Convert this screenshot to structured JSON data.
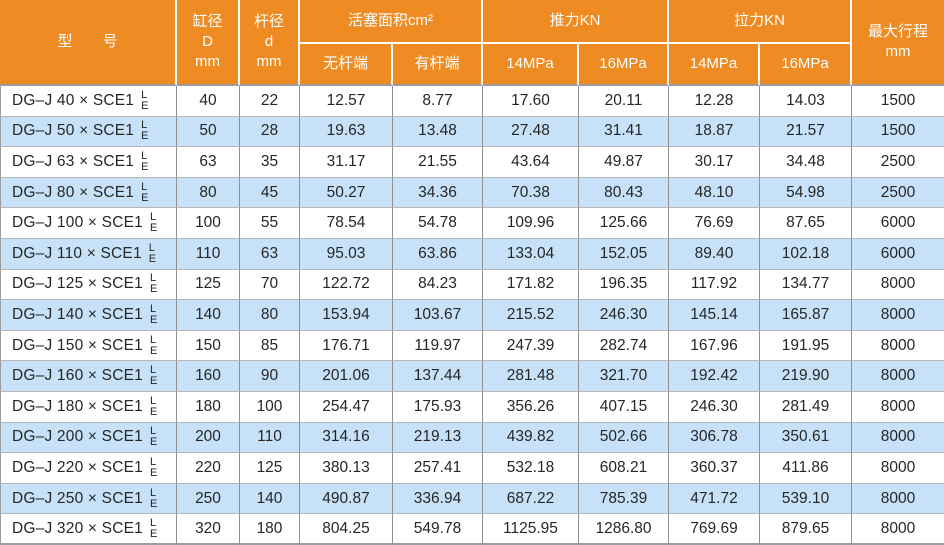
{
  "colors": {
    "header_bg": "#ee8b23",
    "header_text": "#ffffff",
    "row_bg": "#ffffff",
    "row_alt_bg": "#c7e2f8",
    "body_text": "#262626",
    "column_line": "#8f9091",
    "row_line": "#b5b7b9",
    "outer_line": "#9b9da0"
  },
  "chart_data": {
    "type": "table",
    "header": {
      "model": "型　　号",
      "bore_lines": [
        "缸径",
        "D",
        "mm"
      ],
      "rod_lines": [
        "杆径",
        "d",
        "mm"
      ],
      "piston_area": "活塞面积cm²",
      "push": "推力KN",
      "pull": "拉力KN",
      "max_stroke_lines": [
        "最大行程",
        "mm"
      ],
      "sub_headers": [
        "无杆端",
        "有杆端",
        "14MPa",
        "16MPa",
        "14MPa",
        "16MPa"
      ]
    },
    "rows": [
      {
        "model": "DG–J 40 × SCE1",
        "suffix": [
          "L",
          "E"
        ],
        "values": [
          "40",
          "22",
          "12.57",
          "8.77",
          "17.60",
          "20.11",
          "12.28",
          "14.03",
          "1500"
        ]
      },
      {
        "model": "DG–J 50 × SCE1",
        "suffix": [
          "L",
          "E"
        ],
        "values": [
          "50",
          "28",
          "19.63",
          "13.48",
          "27.48",
          "31.41",
          "18.87",
          "21.57",
          "1500"
        ]
      },
      {
        "model": "DG–J 63 × SCE1",
        "suffix": [
          "L",
          "E"
        ],
        "values": [
          "63",
          "35",
          "31.17",
          "21.55",
          "43.64",
          "49.87",
          "30.17",
          "34.48",
          "2500"
        ]
      },
      {
        "model": "DG–J 80 × SCE1",
        "suffix": [
          "L",
          "E"
        ],
        "values": [
          "80",
          "45",
          "50.27",
          "34.36",
          "70.38",
          "80.43",
          "48.10",
          "54.98",
          "2500"
        ]
      },
      {
        "model": "DG–J 100 × SCE1",
        "suffix": [
          "L",
          "E"
        ],
        "values": [
          "100",
          "55",
          "78.54",
          "54.78",
          "109.96",
          "125.66",
          "76.69",
          "87.65",
          "6000"
        ]
      },
      {
        "model": "DG–J 110 × SCE1",
        "suffix": [
          "L",
          "E"
        ],
        "values": [
          "110",
          "63",
          "95.03",
          "63.86",
          "133.04",
          "152.05",
          "89.40",
          "102.18",
          "6000"
        ]
      },
      {
        "model": "DG–J 125 × SCE1",
        "suffix": [
          "L",
          "E"
        ],
        "values": [
          "125",
          "70",
          "122.72",
          "84.23",
          "171.82",
          "196.35",
          "117.92",
          "134.77",
          "8000"
        ]
      },
      {
        "model": "DG–J 140 × SCE1",
        "suffix": [
          "L",
          "E"
        ],
        "values": [
          "140",
          "80",
          "153.94",
          "103.67",
          "215.52",
          "246.30",
          "145.14",
          "165.87",
          "8000"
        ]
      },
      {
        "model": "DG–J 150 × SCE1",
        "suffix": [
          "L",
          "E"
        ],
        "values": [
          "150",
          "85",
          "176.71",
          "119.97",
          "247.39",
          "282.74",
          "167.96",
          "191.95",
          "8000"
        ]
      },
      {
        "model": "DG–J 160 × SCE1",
        "suffix": [
          "L",
          "E"
        ],
        "values": [
          "160",
          "90",
          "201.06",
          "137.44",
          "281.48",
          "321.70",
          "192.42",
          "219.90",
          "8000"
        ]
      },
      {
        "model": "DG–J 180 × SCE1",
        "suffix": [
          "L",
          "E"
        ],
        "values": [
          "180",
          "100",
          "254.47",
          "175.93",
          "356.26",
          "407.15",
          "246.30",
          "281.49",
          "8000"
        ]
      },
      {
        "model": "DG–J 200 × SCE1",
        "suffix": [
          "L",
          "E"
        ],
        "values": [
          "200",
          "110",
          "314.16",
          "219.13",
          "439.82",
          "502.66",
          "306.78",
          "350.61",
          "8000"
        ]
      },
      {
        "model": "DG–J 220 × SCE1",
        "suffix": [
          "L",
          "E"
        ],
        "values": [
          "220",
          "125",
          "380.13",
          "257.41",
          "532.18",
          "608.21",
          "360.37",
          "411.86",
          "8000"
        ]
      },
      {
        "model": "DG–J 250 × SCE1",
        "suffix": [
          "L",
          "E"
        ],
        "values": [
          "250",
          "140",
          "490.87",
          "336.94",
          "687.22",
          "785.39",
          "471.72",
          "539.10",
          "8000"
        ]
      },
      {
        "model": "DG–J 320 × SCE1",
        "suffix": [
          "L",
          "E"
        ],
        "values": [
          "320",
          "180",
          "804.25",
          "549.78",
          "1125.95",
          "1286.80",
          "769.69",
          "879.65",
          "8000"
        ]
      }
    ]
  }
}
